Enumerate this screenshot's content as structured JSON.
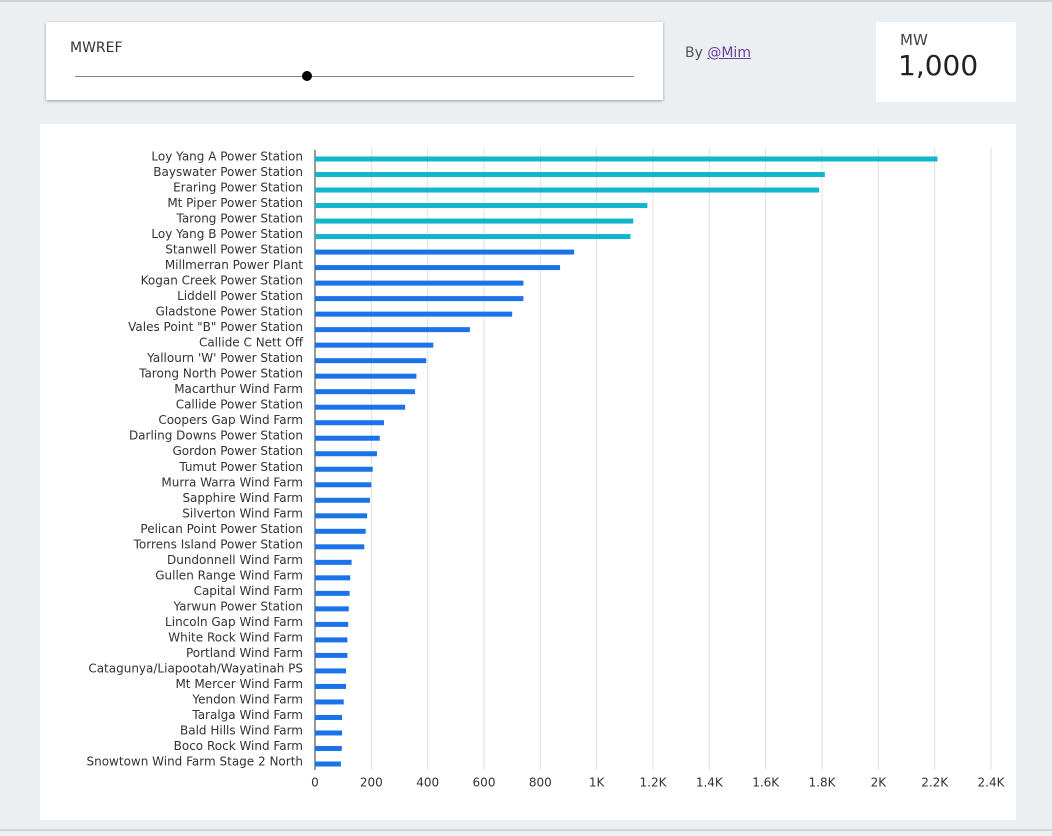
{
  "slider": {
    "label": "MWREF"
  },
  "byline": {
    "prefix": "By",
    "link": "@Mim"
  },
  "scorecard": {
    "label": "MW",
    "value": {
      "value": 1000,
      "label": "1,000"
    }
  },
  "chart_data": {
    "type": "hbar",
    "categories": [
      "Loy Yang A Power Station",
      "Bayswater Power Station",
      "Eraring Power Station",
      "Mt Piper Power Station",
      "Tarong Power Station",
      "Loy Yang B Power Station",
      "Stanwell Power Station",
      "Millmerran Power Plant",
      "Kogan Creek Power Station",
      "Liddell Power Station",
      "Gladstone Power Station",
      "Vales Point \"B\" Power Station",
      "Callide C Nett Off",
      "Yallourn 'W' Power Station",
      "Tarong North Power Station",
      "Macarthur Wind Farm",
      "Callide Power Station",
      "Coopers Gap Wind Farm",
      "Darling Downs Power Station",
      "Gordon Power Station",
      "Tumut Power Station",
      "Murra Warra Wind Farm",
      "Sapphire Wind Farm",
      "Silverton Wind Farm",
      "Pelican Point Power Station",
      "Torrens Island Power Station",
      "Dundonnell Wind Farm",
      "Gullen Range Wind Farm",
      "Capital Wind Farm",
      "Yarwun Power Station",
      "Lincoln Gap Wind Farm",
      "White Rock Wind Farm",
      "Portland Wind Farm",
      "Catagunya/Liapootah/Wayatinah PS",
      "Mt Mercer Wind Farm",
      "Yendon Wind Farm",
      "Taralga Wind Farm",
      "Bald Hills Wind Farm",
      "Boco Rock Wind Farm",
      "Snowtown Wind Farm Stage 2 North"
    ],
    "values": [
      2210,
      1810,
      1790,
      1180,
      1130,
      1120,
      920,
      870,
      740,
      740,
      700,
      550,
      420,
      395,
      360,
      355,
      320,
      245,
      230,
      220,
      205,
      200,
      195,
      185,
      180,
      175,
      130,
      125,
      123,
      120,
      118,
      115,
      115,
      110,
      110,
      102,
      96,
      96,
      95,
      92
    ],
    "color": "#1a73e8",
    "highlight_color": "#12b5cb",
    "xlim": [
      0,
      2400
    ],
    "xticks": [
      0,
      200,
      400,
      600,
      800,
      {
        "value": 1000,
        "label": "1K"
      },
      {
        "value": 1200,
        "label": "1.2K"
      },
      {
        "value": 1400,
        "label": "1.4K"
      },
      {
        "value": 1600,
        "label": "1.6K"
      },
      {
        "value": 1800,
        "label": "1.8K"
      },
      {
        "value": 2000,
        "label": "2K"
      },
      {
        "value": 2200,
        "label": "2.2K"
      },
      {
        "value": 2400,
        "label": "2.4K"
      }
    ],
    "grid": true
  }
}
